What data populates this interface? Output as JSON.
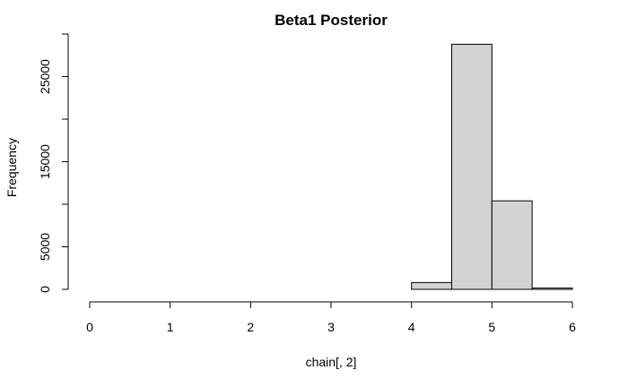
{
  "chart_data": {
    "type": "bar",
    "title": "Beta1 Posterior",
    "xlabel": "chain[, 2]",
    "ylabel": "Frequency",
    "bin_edges": [
      0,
      0.5,
      1,
      1.5,
      2,
      2.5,
      3,
      3.5,
      4,
      4.5,
      5,
      5.5,
      6
    ],
    "values": [
      0,
      0,
      0,
      0,
      0,
      0,
      0,
      0,
      800,
      28800,
      10400,
      150
    ],
    "xlim": [
      0,
      6
    ],
    "ylim": [
      0,
      30000
    ],
    "x_ticks": [
      "0",
      "1",
      "2",
      "3",
      "4",
      "5",
      "6"
    ],
    "y_ticks": [
      "0",
      "5000",
      "15000",
      "25000"
    ],
    "bar_fill": "#d3d3d3",
    "bar_stroke": "#000000",
    "grid": false,
    "legend": "none"
  }
}
